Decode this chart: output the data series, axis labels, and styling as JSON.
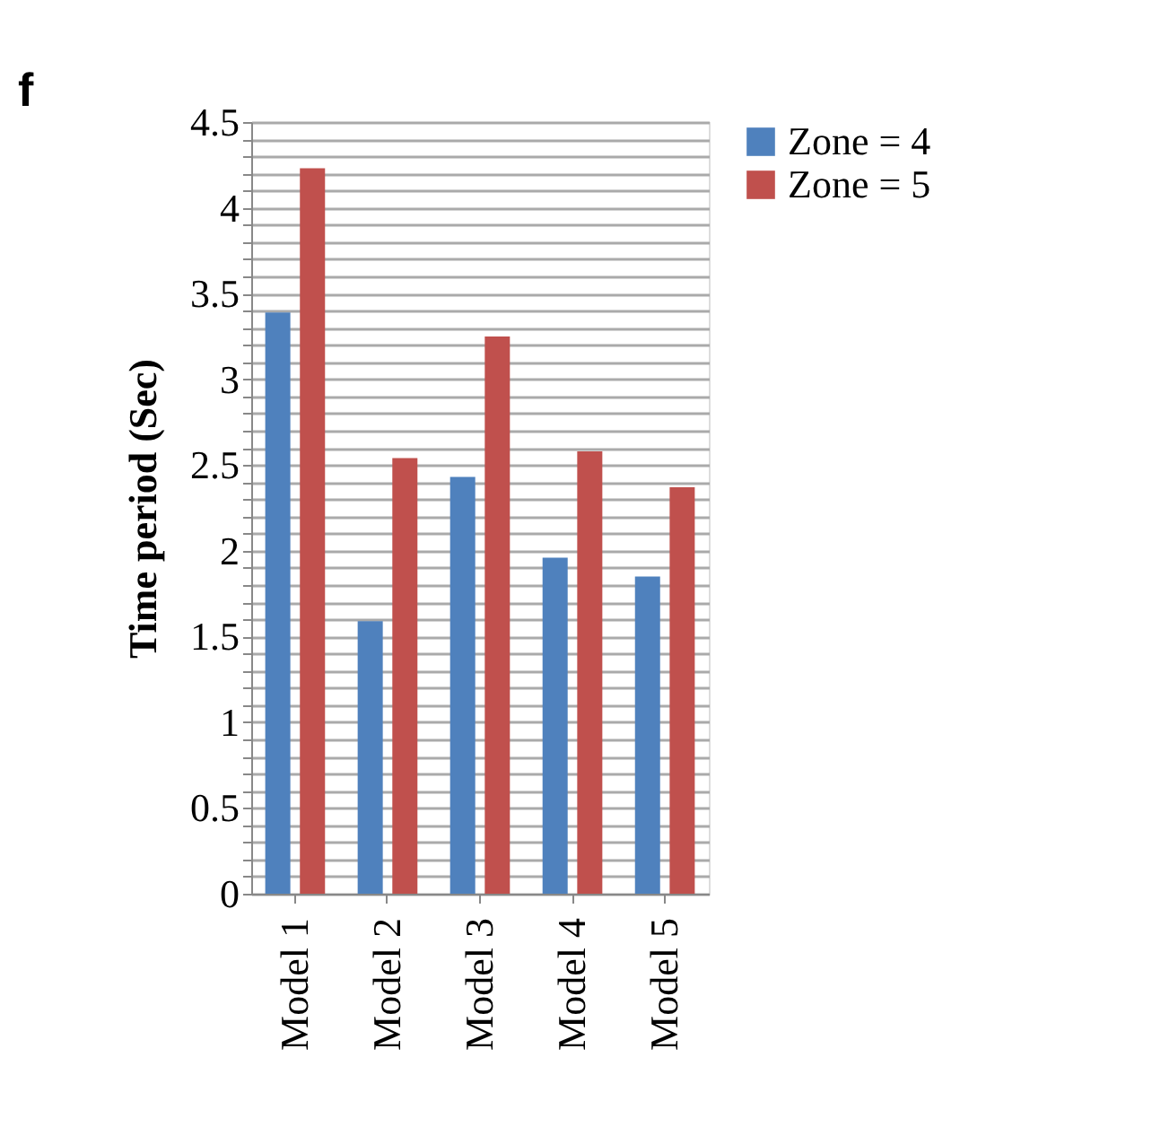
{
  "chart_data": {
    "type": "bar",
    "ylabel": "Time period (Sec)",
    "annotations": [
      "f"
    ],
    "categories": [
      "Model 1",
      "Model 2",
      "Model 3",
      "Model 4",
      "Model 5"
    ],
    "series": [
      {
        "name": "Zone = 4",
        "color": "#4f81bd",
        "values": [
          3.39,
          1.59,
          2.43,
          1.96,
          1.85
        ]
      },
      {
        "name": "Zone = 5",
        "color": "#c0504d",
        "values": [
          4.23,
          2.54,
          3.25,
          2.58,
          2.37
        ]
      }
    ],
    "ylim": [
      0,
      4.5
    ],
    "yticks": [
      0,
      {
        "value": 0.1,
        "label": null
      },
      {
        "value": 0.2,
        "label": null
      },
      {
        "value": 0.3,
        "label": null
      },
      {
        "value": 0.4,
        "label": null
      },
      0.5,
      {
        "value": 0.6,
        "label": null
      },
      {
        "value": 0.7,
        "label": null
      },
      {
        "value": 0.8,
        "label": null
      },
      {
        "value": 0.9,
        "label": null
      },
      1,
      {
        "value": 1.1,
        "label": null
      },
      {
        "value": 1.2,
        "label": null
      },
      {
        "value": 1.3,
        "label": null
      },
      {
        "value": 1.4,
        "label": null
      },
      1.5,
      {
        "value": 1.6,
        "label": null
      },
      {
        "value": 1.7,
        "label": null
      },
      {
        "value": 1.8,
        "label": null
      },
      {
        "value": 1.9,
        "label": null
      },
      2,
      {
        "value": 2.1,
        "label": null
      },
      {
        "value": 2.2,
        "label": null
      },
      {
        "value": 2.3,
        "label": null
      },
      {
        "value": 2.4,
        "label": null
      },
      2.5,
      {
        "value": 2.6,
        "label": null
      },
      {
        "value": 2.7,
        "label": null
      },
      {
        "value": 2.8,
        "label": null
      },
      {
        "value": 2.9,
        "label": null
      },
      3,
      {
        "value": 3.1,
        "label": null
      },
      {
        "value": 3.2,
        "label": null
      },
      {
        "value": 3.3,
        "label": null
      },
      {
        "value": 3.4,
        "label": null
      },
      3.5,
      {
        "value": 3.6,
        "label": null
      },
      {
        "value": 3.7,
        "label": null
      },
      {
        "value": 3.8,
        "label": null
      },
      {
        "value": 3.9,
        "label": null
      },
      4,
      {
        "value": 4.1,
        "label": null
      },
      {
        "value": 4.2,
        "label": null
      },
      {
        "value": 4.3,
        "label": null
      },
      {
        "value": 4.4,
        "label": null
      },
      4.5
    ],
    "grid": "y",
    "legend": "right"
  }
}
